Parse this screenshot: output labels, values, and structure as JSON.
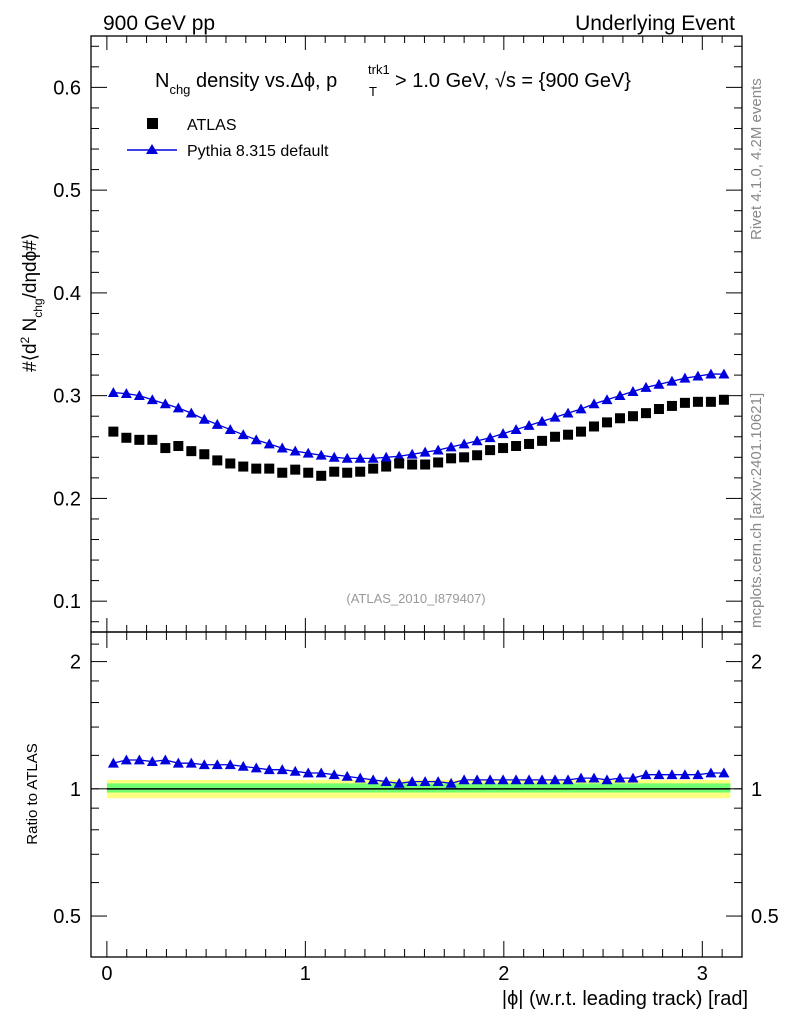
{
  "header": {
    "left": "900 GeV pp",
    "right": "Underlying Event"
  },
  "side": {
    "rivet": "Rivet 4.1.0,  4.2M events",
    "mcplots": "mcplots.cern.ch [arXiv:2401.10621]"
  },
  "colors": {
    "data": "#000000",
    "mc": "#0000dd",
    "band_inner": "#70ff70",
    "band_outer": "#ffff80"
  },
  "chart_data": [
    {
      "type": "scatter",
      "title": {
        "n": "N",
        "chg": "chg",
        "mid": " density vs.",
        "dphi": "Δϕ",
        "p": ", p",
        "trk1": "trk1",
        "T": "T",
        "cut": " > 1.0 GeV, √s = {900 GeV}"
      },
      "ylabel": {
        "a": "#⟨d",
        "sup2": "2",
        "b": " N",
        "chg": "chg",
        "c": "/dηdϕ#⟩"
      },
      "xlim": [
        -0.08,
        3.2
      ],
      "ylim": [
        0.07,
        0.65
      ],
      "yticks": [
        0.1,
        0.2,
        0.3,
        0.4,
        0.5,
        0.6
      ],
      "ytick_labels": [
        "0.1",
        "0.2",
        "0.3",
        "0.4",
        "0.5",
        "0.6"
      ],
      "annotation": "(ATLAS_2010_I879407)",
      "legend": [
        "ATLAS",
        "Pythia 8.315 default"
      ],
      "x": [
        0.0327,
        0.0982,
        0.1636,
        0.2291,
        0.2945,
        0.36,
        0.4254,
        0.4909,
        0.5563,
        0.6218,
        0.6872,
        0.7527,
        0.8181,
        0.8836,
        0.949,
        1.0145,
        1.0799,
        1.1454,
        1.2108,
        1.2763,
        1.3417,
        1.4072,
        1.4726,
        1.5381,
        1.6035,
        1.669,
        1.7344,
        1.7999,
        1.8653,
        1.9308,
        1.9962,
        2.0617,
        2.1271,
        2.1926,
        2.258,
        2.3235,
        2.3889,
        2.4544,
        2.5198,
        2.5853,
        2.6507,
        2.7162,
        2.7816,
        2.8471,
        2.9125,
        2.978,
        3.0434,
        3.1089
      ],
      "series": [
        {
          "name": "ATLAS",
          "values": [
            0.265,
            0.259,
            0.257,
            0.257,
            0.249,
            0.251,
            0.246,
            0.243,
            0.237,
            0.234,
            0.231,
            0.229,
            0.229,
            0.225,
            0.228,
            0.225,
            0.222,
            0.226,
            0.225,
            0.226,
            0.229,
            0.231,
            0.234,
            0.233,
            0.233,
            0.235,
            0.239,
            0.24,
            0.242,
            0.247,
            0.249,
            0.251,
            0.253,
            0.256,
            0.26,
            0.262,
            0.265,
            0.27,
            0.274,
            0.278,
            0.28,
            0.283,
            0.287,
            0.29,
            0.293,
            0.294,
            0.294,
            0.296
          ]
        },
        {
          "name": "Pythia 8.315 default",
          "values": [
            0.303,
            0.302,
            0.3,
            0.296,
            0.292,
            0.288,
            0.283,
            0.277,
            0.272,
            0.267,
            0.262,
            0.257,
            0.253,
            0.249,
            0.246,
            0.244,
            0.242,
            0.24,
            0.239,
            0.239,
            0.239,
            0.24,
            0.241,
            0.243,
            0.245,
            0.247,
            0.25,
            0.253,
            0.256,
            0.259,
            0.263,
            0.267,
            0.271,
            0.275,
            0.279,
            0.283,
            0.287,
            0.292,
            0.296,
            0.3,
            0.304,
            0.308,
            0.311,
            0.314,
            0.317,
            0.319,
            0.321,
            0.321
          ]
        }
      ]
    },
    {
      "type": "scatter",
      "ylabel": "Ratio to ATLAS",
      "xlabel": "|ϕ| (w.r.t. leading track) [rad]",
      "xlim": [
        -0.08,
        3.2
      ],
      "ylim": [
        0.4,
        2.35
      ],
      "yscale": "log",
      "xticks": [
        0,
        1,
        2,
        3
      ],
      "xtick_labels": [
        "0",
        "1",
        "2",
        "3"
      ],
      "yticks": [
        0.5,
        1,
        2
      ],
      "ytick_labels": [
        "0.5",
        "1",
        "2"
      ],
      "x": [
        0.0327,
        0.0982,
        0.1636,
        0.2291,
        0.2945,
        0.36,
        0.4254,
        0.4909,
        0.5563,
        0.6218,
        0.6872,
        0.7527,
        0.8181,
        0.8836,
        0.949,
        1.0145,
        1.0799,
        1.1454,
        1.2108,
        1.2763,
        1.3417,
        1.4072,
        1.4726,
        1.5381,
        1.6035,
        1.669,
        1.7344,
        1.7999,
        1.8653,
        1.9308,
        1.9962,
        2.0617,
        2.1271,
        2.1926,
        2.258,
        2.3235,
        2.3889,
        2.4544,
        2.5198,
        2.5853,
        2.6507,
        2.7162,
        2.7816,
        2.8471,
        2.9125,
        2.978,
        3.0434,
        3.1089
      ],
      "band_inner": [
        0.98,
        1.03
      ],
      "band_outer": [
        0.95,
        1.05
      ],
      "series": [
        {
          "name": "Pythia 8.315 default / ATLAS",
          "values": [
            1.15,
            1.17,
            1.17,
            1.16,
            1.17,
            1.15,
            1.15,
            1.14,
            1.14,
            1.14,
            1.13,
            1.12,
            1.11,
            1.11,
            1.1,
            1.09,
            1.09,
            1.08,
            1.07,
            1.06,
            1.05,
            1.04,
            1.03,
            1.04,
            1.04,
            1.04,
            1.03,
            1.05,
            1.05,
            1.05,
            1.05,
            1.05,
            1.05,
            1.05,
            1.05,
            1.05,
            1.06,
            1.06,
            1.05,
            1.06,
            1.06,
            1.08,
            1.08,
            1.08,
            1.08,
            1.08,
            1.09,
            1.09
          ]
        }
      ]
    }
  ]
}
